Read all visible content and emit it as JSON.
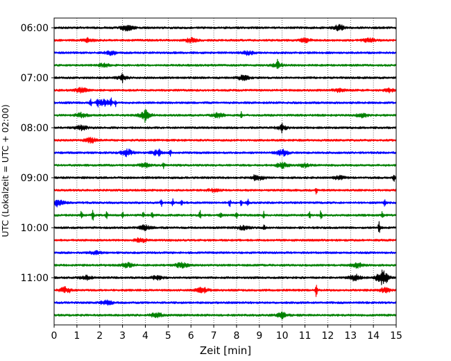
{
  "chart_data": {
    "type": "line",
    "title": "",
    "xlabel": "Zeit  [min]",
    "ylabel": "UTC (Lokalzeit = UTC + 02:00)",
    "xlim": [
      0,
      15
    ],
    "x_ticks": [
      "0",
      "1",
      "2",
      "3",
      "4",
      "5",
      "6",
      "7",
      "8",
      "9",
      "10",
      "11",
      "12",
      "13",
      "14",
      "15"
    ],
    "y_ticks": [
      "06:00",
      "07:00",
      "08:00",
      "09:00",
      "10:00",
      "11:00"
    ],
    "grid": "vertical dotted",
    "legend": "none",
    "colors": [
      "#000000",
      "#ff0000",
      "#0000ff",
      "#008000"
    ],
    "rows": [
      {
        "start": "06:00",
        "color": "#000000",
        "bursts": [
          [
            3.2,
            4
          ],
          [
            12.5,
            3.5
          ]
        ],
        "spikes": []
      },
      {
        "start": "06:15",
        "color": "#ff0000",
        "bursts": [
          [
            1.5,
            2.5
          ],
          [
            6,
            3
          ],
          [
            11,
            2.5
          ],
          [
            13.8,
            2.5
          ]
        ],
        "spikes": []
      },
      {
        "start": "06:30",
        "color": "#0000ff",
        "bursts": [
          [
            2.5,
            2.5
          ],
          [
            8.5,
            2.5
          ]
        ],
        "spikes": []
      },
      {
        "start": "06:45",
        "color": "#008000",
        "bursts": [
          [
            2.2,
            2
          ],
          [
            9.8,
            2.5
          ]
        ],
        "spikes": [
          [
            9.8,
            5
          ]
        ]
      },
      {
        "start": "07:00",
        "color": "#000000",
        "bursts": [
          [
            3,
            2.5
          ],
          [
            8.3,
            3
          ]
        ],
        "spikes": [
          [
            3,
            5
          ]
        ]
      },
      {
        "start": "07:15",
        "color": "#ff0000",
        "bursts": [
          [
            1.2,
            3
          ],
          [
            12.5,
            2.5
          ],
          [
            14.7,
            2.5
          ]
        ],
        "spikes": []
      },
      {
        "start": "07:30",
        "color": "#0000ff",
        "bursts": [
          [
            2.2,
            4
          ]
        ],
        "spikes": [
          [
            1.6,
            7
          ],
          [
            1.9,
            6
          ],
          [
            2.5,
            5
          ],
          [
            2.7,
            5
          ]
        ]
      },
      {
        "start": "07:45",
        "color": "#008000",
        "bursts": [
          [
            4,
            5
          ],
          [
            1.2,
            3
          ],
          [
            7.2,
            3
          ],
          [
            13.5,
            3
          ]
        ],
        "spikes": [
          [
            4,
            7
          ],
          [
            8.2,
            4
          ]
        ]
      },
      {
        "start": "08:00",
        "color": "#000000",
        "bursts": [
          [
            1.2,
            3
          ],
          [
            10,
            2.5
          ]
        ],
        "spikes": [
          [
            10,
            5
          ]
        ]
      },
      {
        "start": "08:15",
        "color": "#ff0000",
        "bursts": [
          [
            1.6,
            3
          ]
        ],
        "spikes": []
      },
      {
        "start": "08:30",
        "color": "#0000ff",
        "bursts": [
          [
            3.2,
            4.5
          ],
          [
            4.5,
            3
          ],
          [
            10,
            4
          ]
        ],
        "spikes": [
          [
            4.6,
            6
          ],
          [
            5.1,
            5
          ]
        ]
      },
      {
        "start": "08:45",
        "color": "#008000",
        "bursts": [
          [
            4,
            2.5
          ],
          [
            10,
            3.5
          ],
          [
            11,
            2.5
          ]
        ],
        "spikes": [
          [
            4.8,
            5
          ]
        ]
      },
      {
        "start": "09:00",
        "color": "#000000",
        "bursts": [
          [
            9,
            2.5
          ],
          [
            12.5,
            2.5
          ]
        ],
        "spikes": [
          [
            8.8,
            5
          ],
          [
            14.9,
            6
          ]
        ]
      },
      {
        "start": "09:15",
        "color": "#ff0000",
        "bursts": [
          [
            7,
            2
          ]
        ],
        "spikes": [
          [
            11.5,
            5
          ]
        ]
      },
      {
        "start": "09:30",
        "color": "#0000ff",
        "bursts": [
          [
            0.2,
            3.5
          ]
        ],
        "spikes": [
          [
            0.1,
            6
          ],
          [
            4.7,
            6
          ],
          [
            5.2,
            5
          ],
          [
            5.6,
            5
          ],
          [
            7.7,
            5
          ],
          [
            8.2,
            4
          ],
          [
            8.5,
            5
          ],
          [
            14.5,
            4
          ]
        ]
      },
      {
        "start": "09:45",
        "color": "#008000",
        "bursts": [],
        "spikes": [
          [
            1.2,
            6
          ],
          [
            1.7,
            8
          ],
          [
            2.3,
            5
          ],
          [
            3,
            5
          ],
          [
            3.9,
            6
          ],
          [
            4.3,
            5
          ],
          [
            6.4,
            6
          ],
          [
            7.3,
            5
          ],
          [
            8,
            4
          ],
          [
            9.2,
            5
          ],
          [
            11.2,
            5
          ],
          [
            11.7,
            8
          ],
          [
            14.4,
            5
          ]
        ]
      },
      {
        "start": "10:00",
        "color": "#000000",
        "bursts": [
          [
            4,
            3.5
          ],
          [
            8.3,
            2.5
          ]
        ],
        "spikes": [
          [
            9.2,
            6
          ],
          [
            14.25,
            12
          ]
        ]
      },
      {
        "start": "10:15",
        "color": "#ff0000",
        "bursts": [
          [
            3.8,
            3
          ]
        ],
        "spikes": []
      },
      {
        "start": "10:30",
        "color": "#0000ff",
        "bursts": [
          [
            1.8,
            2
          ]
        ],
        "spikes": []
      },
      {
        "start": "10:45",
        "color": "#008000",
        "bursts": [
          [
            3.2,
            3
          ],
          [
            5.6,
            3.5
          ],
          [
            13.3,
            3
          ]
        ],
        "spikes": []
      },
      {
        "start": "11:00",
        "color": "#000000",
        "bursts": [
          [
            14.4,
            10
          ],
          [
            13.2,
            4
          ],
          [
            1.4,
            2.5
          ],
          [
            4.5,
            2.5
          ]
        ],
        "spikes": []
      },
      {
        "start": "11:15",
        "color": "#ff0000",
        "bursts": [
          [
            0.5,
            4
          ],
          [
            6.5,
            3.5
          ],
          [
            14.5,
            3
          ]
        ],
        "spikes": [
          [
            11.5,
            9
          ]
        ]
      },
      {
        "start": "11:30",
        "color": "#0000ff",
        "bursts": [
          [
            2.3,
            3
          ]
        ],
        "spikes": []
      },
      {
        "start": "11:45",
        "color": "#008000",
        "bursts": [
          [
            4.5,
            3.5
          ],
          [
            10,
            3
          ]
        ],
        "spikes": [
          [
            10,
            5
          ]
        ]
      }
    ]
  }
}
